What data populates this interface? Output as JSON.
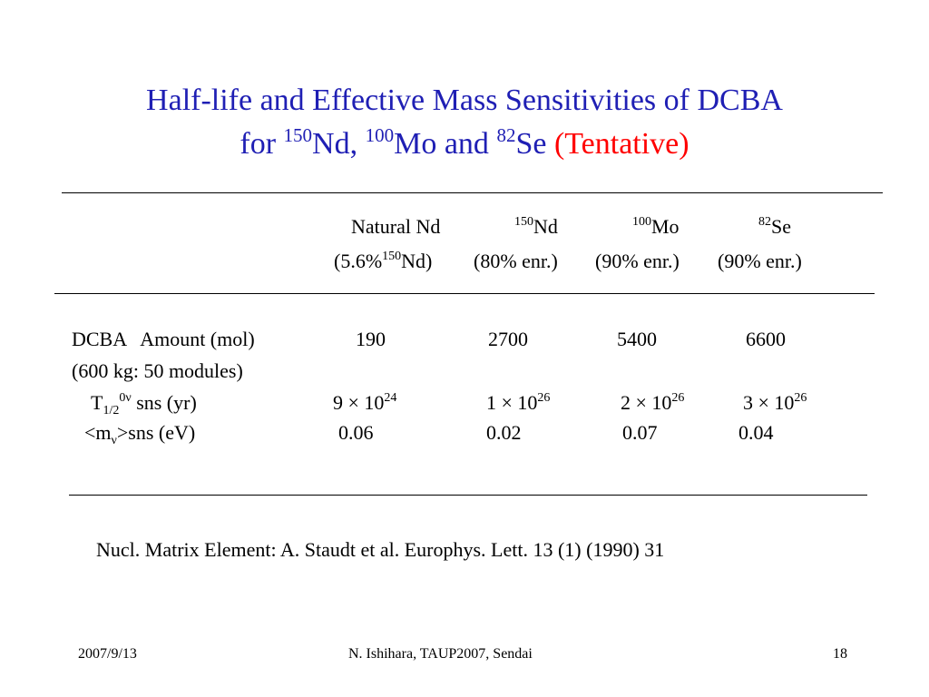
{
  "title": {
    "line1": "Half-life and Effective Mass Sensitivities of DCBA",
    "line2_prefix": "for ",
    "nd_mass": "150",
    "nd_symbol": "Nd, ",
    "mo_mass": "100",
    "mo_symbol": "Mo and ",
    "se_mass": "82",
    "se_symbol": "Se ",
    "tentative": "(Tentative)"
  },
  "table": {
    "headers": {
      "natural_nd": "Natural Nd",
      "nd150_mass": "150",
      "nd150_symbol": "Nd",
      "mo100_mass": "100",
      "mo100_symbol": "Mo",
      "se82_mass": "82",
      "se82_symbol": "Se"
    },
    "subheaders": {
      "natural_prefix": "(5.6%",
      "natural_mass": "150",
      "natural_suffix": "Nd)",
      "nd150_enr": "(80% enr.)",
      "mo100_enr": "(90% enr.)",
      "se82_enr": "(90% enr.)"
    },
    "amount_row": {
      "label": "DCBA   Amount (mol)",
      "values": [
        "190",
        "2700",
        "5400",
        "6600"
      ]
    },
    "modules_note": "(600 kg: 50 modules)",
    "halflife_row": {
      "label_T": "T",
      "label_sub": "1/2",
      "label_sup": "0ν",
      "label_rest": " sns (yr)",
      "values": [
        {
          "base": "9 × 10",
          "exp": "24"
        },
        {
          "base": "1 × 10",
          "exp": "26"
        },
        {
          "base": "2 × 10",
          "exp": "26"
        },
        {
          "base": "3 × 10",
          "exp": "26"
        }
      ]
    },
    "mass_row": {
      "label_open": "<m",
      "label_sub": "ν",
      "label_rest": ">sns (eV)",
      "values": [
        "0.06",
        "0.02",
        "0.07",
        "0.04"
      ]
    }
  },
  "reference": "Nucl. Matrix Element: A. Staudt et al. Europhys. Lett. 13 (1) (1990) 31",
  "footer": {
    "date": "2007/9/13",
    "author": "N. Ishihara, TAUP2007, Sendai",
    "page": "18"
  }
}
